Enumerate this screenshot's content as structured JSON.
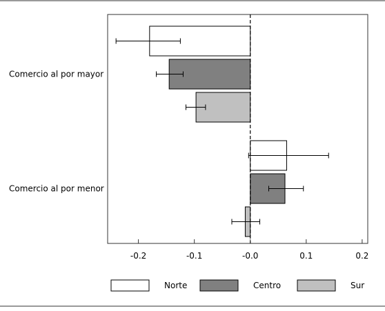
{
  "chart_data": {
    "type": "bar",
    "orientation": "horizontal",
    "categories": [
      "Comercio al por mayor",
      "Comercio al por menor"
    ],
    "series": [
      {
        "name": "Norte",
        "color": "#ffffff",
        "values": [
          -0.18,
          0.065
        ],
        "err_low": [
          -0.24,
          -0.003
        ],
        "err_high": [
          -0.125,
          0.14
        ]
      },
      {
        "name": "Centro",
        "color": "#808080",
        "values": [
          -0.145,
          0.062
        ],
        "err_low": [
          -0.168,
          0.033
        ],
        "err_high": [
          -0.12,
          0.095
        ]
      },
      {
        "name": "Sur",
        "color": "#c0c0c0",
        "values": [
          -0.097,
          -0.009
        ],
        "err_low": [
          -0.115,
          -0.033
        ],
        "err_high": [
          -0.08,
          0.017
        ]
      }
    ],
    "xticks": [
      "-0.2",
      "-0.1",
      "-0.0",
      "0.1",
      "0.2"
    ],
    "xtick_values": [
      -0.2,
      -0.1,
      0.0,
      0.1,
      0.2
    ],
    "xlim": [
      -0.255,
      0.21
    ],
    "zero_line": "dashed",
    "grid": false,
    "legend": "bottom",
    "title": "",
    "xlabel": "",
    "ylabel": ""
  }
}
